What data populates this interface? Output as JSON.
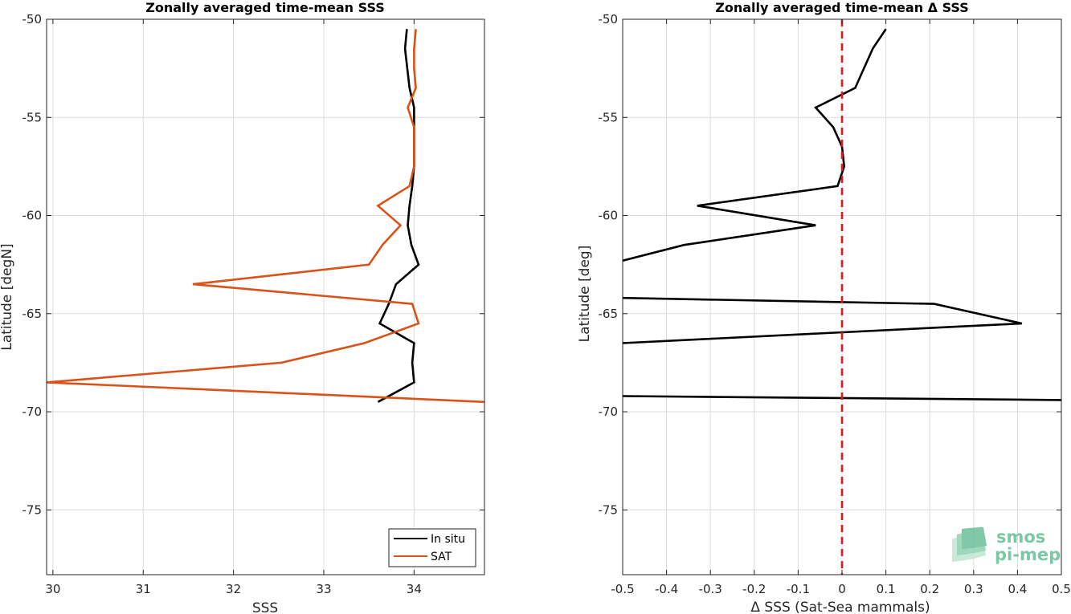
{
  "colors": {
    "in_situ": "#000000",
    "sat": "#d95319",
    "zero_line": "#e31a1c",
    "grid": "#dcdcdc",
    "logo": "#7bc8a4"
  },
  "logo": {
    "line1": "smos",
    "line2": "pi-mep"
  },
  "chart_data": [
    {
      "type": "line",
      "title": "Zonally averaged time-mean SSS",
      "xlabel": "SSS",
      "ylabel": "Latitude [degN]",
      "xlim": [
        29.93,
        34.78
      ],
      "ylim": [
        -78.3,
        -50
      ],
      "xticks": [
        30,
        31,
        32,
        33,
        34
      ],
      "yticks": [
        -50,
        -55,
        -60,
        -65,
        -70,
        -75
      ],
      "grid": true,
      "legend": {
        "placement": "bottom-right",
        "entries": [
          "In situ",
          "SAT"
        ]
      },
      "series": [
        {
          "name": "In situ",
          "color_key": "in_situ",
          "points": [
            [
              33.92,
              -50.5
            ],
            [
              33.9,
              -51.5
            ],
            [
              33.95,
              -53.5
            ],
            [
              34.0,
              -54.5
            ],
            [
              34.0,
              -55.5
            ],
            [
              34.0,
              -56.5
            ],
            [
              34.0,
              -57.5
            ],
            [
              33.98,
              -58.5
            ],
            [
              33.95,
              -59.5
            ],
            [
              33.93,
              -60.5
            ],
            [
              33.97,
              -61.5
            ],
            [
              34.05,
              -62.5
            ],
            [
              33.8,
              -63.5
            ],
            [
              33.72,
              -64.5
            ],
            [
              33.62,
              -65.5
            ],
            [
              34.0,
              -66.5
            ],
            [
              33.98,
              -67.5
            ],
            [
              34.0,
              -68.5
            ],
            [
              33.6,
              -69.5
            ]
          ]
        },
        {
          "name": "SAT",
          "color_key": "sat",
          "points": [
            [
              34.02,
              -50.5
            ],
            [
              34.0,
              -51.5
            ],
            [
              34.0,
              -52.5
            ],
            [
              34.02,
              -53.5
            ],
            [
              33.93,
              -54.5
            ],
            [
              34.0,
              -55.5
            ],
            [
              34.0,
              -56.5
            ],
            [
              34.0,
              -57.5
            ],
            [
              33.95,
              -58.5
            ],
            [
              33.6,
              -59.5
            ],
            [
              33.85,
              -60.5
            ],
            [
              33.65,
              -61.5
            ],
            [
              33.5,
              -62.5
            ],
            [
              31.55,
              -63.5
            ],
            [
              33.98,
              -64.5
            ],
            [
              34.05,
              -65.5
            ],
            [
              33.45,
              -66.5
            ],
            [
              32.53,
              -67.5
            ],
            [
              29.93,
              -68.5
            ],
            [
              34.78,
              -69.5
            ]
          ]
        }
      ]
    },
    {
      "type": "line",
      "title": "Zonally averaged time-mean Δ SSS",
      "xlabel": "Δ SSS (Sat-Sea mammals)",
      "ylabel": "Latitude [deg]",
      "xlim": [
        -0.5,
        0.5
      ],
      "ylim": [
        -78.3,
        -50
      ],
      "xticks": [
        -0.5,
        -0.4,
        -0.3,
        -0.2,
        -0.1,
        0,
        0.1,
        0.2,
        0.3,
        0.4,
        0.5
      ],
      "yticks": [
        -50,
        -55,
        -60,
        -65,
        -70,
        -75
      ],
      "grid": true,
      "reference_line": {
        "x": 0,
        "style": "dashed",
        "color_key": "zero_line"
      },
      "series": [
        {
          "color_key": "in_situ",
          "points": [
            [
              0.1,
              -50.5
            ],
            [
              0.07,
              -51.5
            ],
            [
              0.05,
              -52.5
            ],
            [
              0.03,
              -53.5
            ],
            [
              -0.06,
              -54.5
            ],
            [
              -0.02,
              -55.5
            ],
            [
              0.0,
              -56.5
            ],
            [
              0.005,
              -57.5
            ],
            [
              -0.01,
              -58.5
            ],
            [
              -0.33,
              -59.5
            ],
            [
              -0.06,
              -60.5
            ],
            [
              -0.36,
              -61.5
            ],
            [
              -0.5,
              -62.3
            ]
          ]
        },
        {
          "color_key": "in_situ",
          "points": [
            [
              -0.5,
              -64.2
            ],
            [
              0.21,
              -64.5
            ],
            [
              0.41,
              -65.5
            ],
            [
              -0.5,
              -66.5
            ]
          ]
        },
        {
          "color_key": "in_situ",
          "points": [
            [
              -0.5,
              -69.2
            ],
            [
              0.5,
              -69.4
            ]
          ]
        }
      ]
    }
  ]
}
